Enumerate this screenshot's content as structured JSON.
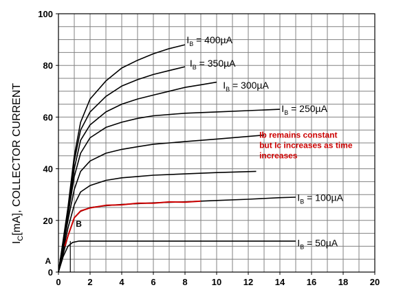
{
  "chart_data": {
    "type": "line",
    "title": "",
    "xlabel": "",
    "ylabel": "I",
    "ylabel_sub": "C",
    "ylabel_rest": "[mA], COLLECTOR CURRENT",
    "xlim": [
      0,
      20
    ],
    "ylim": [
      0,
      100
    ],
    "xticks": [
      "0",
      "2",
      "4",
      "6",
      "8",
      "10",
      "12",
      "14",
      "16",
      "18",
      "20"
    ],
    "yticks": [
      "0",
      "20",
      "40",
      "60",
      "80",
      "100"
    ],
    "grid": true,
    "colors": {
      "curve": "#000000",
      "highlight": "#cc0000",
      "grid": "#808080"
    },
    "series": [
      {
        "label_main": "I",
        "label_sub": "B",
        "label_rest": " = 400µA",
        "label_at": [
          8.1,
          88.5
        ],
        "points": [
          [
            0,
            0
          ],
          [
            0.6,
            25
          ],
          [
            1,
            45
          ],
          [
            1.4,
            58
          ],
          [
            2,
            67
          ],
          [
            3,
            74
          ],
          [
            4,
            79
          ],
          [
            5,
            82
          ],
          [
            6,
            84.5
          ],
          [
            7,
            86.5
          ],
          [
            8,
            88
          ]
        ]
      },
      {
        "label_main": "I",
        "label_sub": "B",
        "label_rest": " = 350µA",
        "label_at": [
          8.3,
          79.5
        ],
        "points": [
          [
            0,
            0
          ],
          [
            0.6,
            24
          ],
          [
            1,
            43
          ],
          [
            1.4,
            55
          ],
          [
            2,
            62
          ],
          [
            3,
            68
          ],
          [
            4,
            72
          ],
          [
            5,
            74.5
          ],
          [
            6,
            76.5
          ],
          [
            7,
            78
          ],
          [
            8,
            79.5
          ]
        ]
      },
      {
        "label_main": "I",
        "label_sub": "B",
        "label_rest": " = 300µA",
        "label_at": [
          10.4,
          71
        ],
        "points": [
          [
            0,
            0
          ],
          [
            0.6,
            23
          ],
          [
            1,
            40
          ],
          [
            1.4,
            51
          ],
          [
            2,
            57
          ],
          [
            3,
            62
          ],
          [
            4,
            65
          ],
          [
            5,
            67
          ],
          [
            6,
            68.5
          ],
          [
            7,
            70
          ],
          [
            8,
            71.5
          ],
          [
            9,
            72.5
          ],
          [
            10,
            73.5
          ]
        ]
      },
      {
        "label_main": "I",
        "label_sub": "B",
        "label_rest": " = 250µA",
        "label_at": [
          14.1,
          62
        ],
        "points": [
          [
            0,
            0
          ],
          [
            0.6,
            22
          ],
          [
            1,
            37
          ],
          [
            1.4,
            46
          ],
          [
            2,
            52
          ],
          [
            3,
            56
          ],
          [
            4,
            58
          ],
          [
            5,
            59.5
          ],
          [
            6,
            60.5
          ],
          [
            8,
            61.5
          ],
          [
            10,
            62
          ],
          [
            12,
            62.5
          ],
          [
            14,
            63
          ]
        ]
      },
      {
        "label_main": "",
        "label_sub": "",
        "label_rest": "",
        "label_at": null,
        "points": [
          [
            0,
            0
          ],
          [
            0.6,
            20
          ],
          [
            1,
            32
          ],
          [
            1.4,
            39
          ],
          [
            2,
            43
          ],
          [
            3,
            46
          ],
          [
            4,
            47.5
          ],
          [
            5,
            48.5
          ],
          [
            6,
            49.5
          ],
          [
            8,
            50.5
          ],
          [
            10,
            51.5
          ],
          [
            12,
            52.5
          ],
          [
            13,
            53
          ]
        ]
      },
      {
        "label_main": "",
        "label_sub": "",
        "label_rest": "",
        "label_at": null,
        "points": [
          [
            0,
            0
          ],
          [
            0.6,
            17
          ],
          [
            1,
            26
          ],
          [
            1.4,
            31
          ],
          [
            2,
            33.5
          ],
          [
            3,
            35.5
          ],
          [
            4,
            36.5
          ],
          [
            5,
            37
          ],
          [
            6,
            37.5
          ],
          [
            8,
            38
          ],
          [
            10,
            38.5
          ],
          [
            12.5,
            39
          ]
        ]
      },
      {
        "label_main": "I",
        "label_sub": "B",
        "label_rest": " = 100µA",
        "label_at": [
          15.1,
          27.5
        ],
        "points": [
          [
            0,
            0
          ],
          [
            0.6,
            14
          ],
          [
            1,
            21
          ],
          [
            1.4,
            23.5
          ],
          [
            2,
            25
          ],
          [
            3,
            25.7
          ],
          [
            4,
            26.2
          ],
          [
            5,
            26.5
          ],
          [
            6,
            26.8
          ],
          [
            8,
            27.2
          ],
          [
            10,
            27.7
          ],
          [
            12,
            28.2
          ],
          [
            14,
            28.8
          ],
          [
            15,
            29
          ]
        ]
      },
      {
        "label_main": "I",
        "label_sub": "B",
        "label_rest": " = 50µA",
        "label_at": [
          15.1,
          10
        ],
        "points": [
          [
            0,
            0
          ],
          [
            0.3,
            6
          ],
          [
            0.6,
            10
          ],
          [
            0.9,
            11.5
          ],
          [
            1.3,
            12
          ],
          [
            2,
            12
          ],
          [
            4,
            12
          ],
          [
            6,
            12
          ],
          [
            8,
            12
          ],
          [
            10,
            12
          ],
          [
            12,
            12
          ],
          [
            15,
            12
          ]
        ]
      }
    ],
    "highlight_points": [
      [
        0.4,
        10
      ],
      [
        0.6,
        14
      ],
      [
        1,
        21
      ],
      [
        1.4,
        23.5
      ],
      [
        2,
        25
      ],
      [
        3,
        25.7
      ],
      [
        4,
        26.2
      ],
      [
        5,
        26.5
      ],
      [
        6,
        26.8
      ],
      [
        7,
        27
      ],
      [
        8,
        27.2
      ],
      [
        9,
        27.3
      ]
    ],
    "annotations": {
      "note_lines": [
        "Ib remains constant",
        "but Ic increases as time",
        "increases"
      ],
      "note_at": [
        12.7,
        52
      ],
      "point_a": {
        "text": "A",
        "at": [
          -0.85,
          3.2
        ]
      },
      "point_b": {
        "text": "B",
        "at": [
          1.1,
          17.5
        ]
      },
      "marker_x": 0.75
    }
  }
}
